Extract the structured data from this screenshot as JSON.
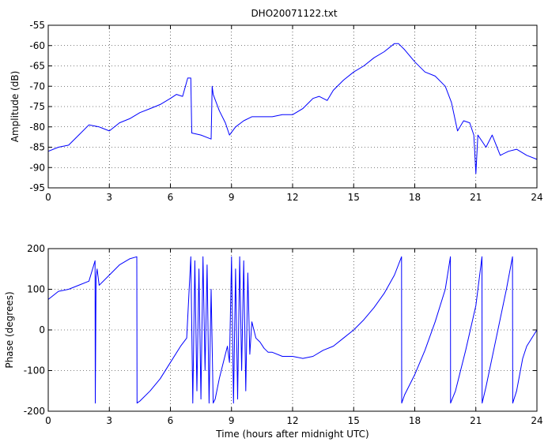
{
  "chart_data": [
    {
      "type": "line",
      "title": "DHO20071122.txt",
      "xlabel": "",
      "ylabel": "Amplitude (dB)",
      "xlim": [
        0,
        24
      ],
      "ylim": [
        -95,
        -55
      ],
      "xticks": [
        "0",
        "3",
        "6",
        "9",
        "12",
        "15",
        "18",
        "21",
        "24"
      ],
      "yticks": [
        "-55",
        "-60",
        "-65",
        "-70",
        "-75",
        "-80",
        "-85",
        "-90",
        "-95"
      ],
      "grid": true,
      "color": "#0000ff",
      "series": [
        {
          "x": [
            0,
            0.5,
            1.0,
            1.5,
            2.0,
            2.5,
            3.0,
            3.5,
            4.0,
            4.5,
            5.0,
            5.5,
            6.0,
            6.3,
            6.6,
            6.85,
            7.0,
            7.05,
            7.5,
            8.0,
            8.05,
            8.1,
            8.4,
            8.7,
            8.9,
            9.2,
            9.6,
            10.0,
            10.5,
            11.0,
            11.5,
            12.0,
            12.5,
            13.0,
            13.3,
            13.7,
            14.0,
            14.5,
            15.0,
            15.5,
            16.0,
            16.5,
            17.0,
            17.2,
            17.5,
            18.0,
            18.5,
            19.0,
            19.5,
            19.8,
            20.1,
            20.4,
            20.7,
            20.9,
            21.0,
            21.1,
            21.5,
            21.8,
            22.2,
            22.6,
            23.0,
            23.5,
            24.0
          ],
          "values": [
            -86,
            -85,
            -84.5,
            -82,
            -79.5,
            -80,
            -81,
            -79,
            -78,
            -76.5,
            -75.5,
            -74.5,
            -73,
            -72,
            -72.5,
            -68,
            -68,
            -81.5,
            -82,
            -83,
            -70,
            -72,
            -76,
            -79,
            -82,
            -80,
            -78.5,
            -77.5,
            -77.5,
            -77.5,
            -77,
            -77,
            -75.5,
            -73,
            -72.5,
            -73.5,
            -71,
            -68.5,
            -66.5,
            -65,
            -63,
            -61.5,
            -59.5,
            -59.5,
            -61,
            -64,
            -66.5,
            -67.5,
            -70,
            -74,
            -81,
            -78.5,
            -79,
            -82,
            -91.5,
            -82,
            -85,
            -82,
            -87,
            -86,
            -85.5,
            -87,
            -88
          ]
        }
      ]
    },
    {
      "type": "line",
      "title": "",
      "xlabel": "Time (hours after midnight UTC)",
      "ylabel": "Phase (degrees)",
      "xlim": [
        0,
        24
      ],
      "ylim": [
        -200,
        200
      ],
      "xticks": [
        "0",
        "3",
        "6",
        "9",
        "12",
        "15",
        "18",
        "21",
        "24"
      ],
      "yticks": [
        "200",
        "100",
        "0",
        "-100",
        "-200"
      ],
      "grid": true,
      "color": "#0000ff",
      "series": [
        {
          "x": [
            0,
            0.5,
            1.0,
            1.5,
            2.0,
            2.3,
            2.31,
            2.35,
            2.4,
            2.5,
            3.0,
            3.5,
            4.0,
            4.35,
            4.36,
            4.5,
            5.0,
            5.5,
            6.0,
            6.5,
            6.8,
            7.0,
            7.1,
            7.2,
            7.3,
            7.4,
            7.5,
            7.6,
            7.7,
            7.8,
            7.9,
            8.0,
            8.1,
            8.2,
            8.4,
            8.6,
            8.8,
            8.9,
            9.0,
            9.1,
            9.2,
            9.3,
            9.4,
            9.5,
            9.6,
            9.7,
            9.8,
            9.9,
            10.0,
            10.2,
            10.4,
            10.6,
            10.8,
            11.0,
            11.5,
            12.0,
            12.5,
            13.0,
            13.5,
            14.0,
            14.5,
            15.0,
            15.5,
            16.0,
            16.5,
            17.0,
            17.35,
            17.36,
            17.5,
            18.0,
            18.5,
            19.0,
            19.5,
            19.75,
            19.76,
            20.0,
            20.5,
            21.0,
            21.3,
            21.31,
            21.5,
            22.0,
            22.5,
            22.8,
            22.81,
            23.0,
            23.3,
            23.5,
            24.0
          ],
          "values": [
            75,
            95,
            100,
            110,
            120,
            170,
            -180,
            130,
            150,
            110,
            135,
            160,
            175,
            180,
            -180,
            -175,
            -150,
            -120,
            -80,
            -40,
            -20,
            180,
            -180,
            170,
            -150,
            150,
            -170,
            180,
            -100,
            160,
            -180,
            100,
            -180,
            -170,
            -120,
            -80,
            -40,
            -80,
            180,
            -180,
            150,
            -170,
            180,
            -100,
            170,
            -150,
            140,
            -60,
            20,
            -20,
            -30,
            -45,
            -55,
            -55,
            -65,
            -65,
            -70,
            -65,
            -50,
            -40,
            -20,
            0,
            25,
            55,
            90,
            135,
            180,
            -180,
            -160,
            -110,
            -50,
            20,
            100,
            180,
            -180,
            -150,
            -50,
            60,
            180,
            -180,
            -140,
            -20,
            100,
            180,
            -180,
            -150,
            -70,
            -40,
            0
          ]
        }
      ]
    }
  ]
}
